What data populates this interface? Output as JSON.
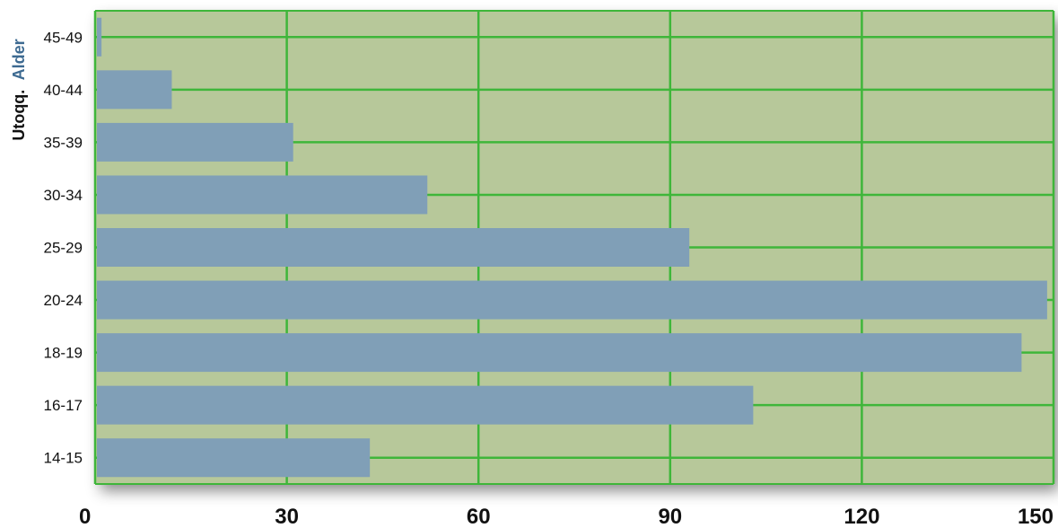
{
  "chart_data": {
    "type": "bar",
    "orientation": "horizontal",
    "categories": [
      "14-15",
      "16-17",
      "18-19",
      "20-24",
      "25-29",
      "30-34",
      "35-39",
      "40-44",
      "45-49"
    ],
    "values": [
      43,
      103,
      145,
      149,
      93,
      52,
      31,
      12,
      1
    ],
    "ylabel_part1": "Utoqq.",
    "ylabel_part2": "Alder",
    "xlim": [
      0,
      150
    ],
    "xticks": [
      "0",
      "30",
      "60",
      "90",
      "120",
      "150"
    ],
    "grid": true,
    "colors": {
      "plot_bg": "#b7c89a",
      "grid": "#3fb63a",
      "bar": "#809fb7",
      "label_part2": "#3d6a91"
    }
  }
}
